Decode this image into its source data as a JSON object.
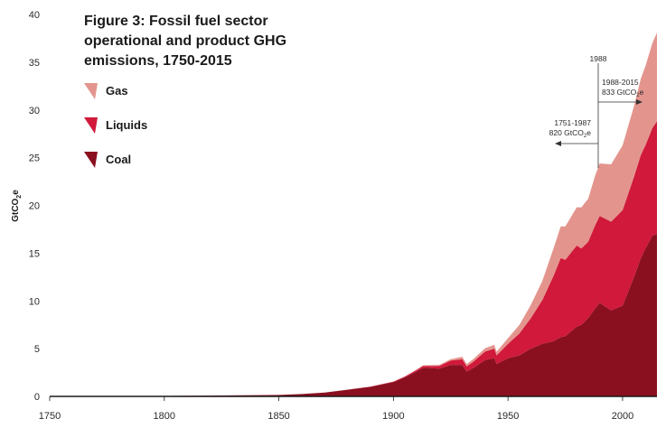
{
  "chart_data": {
    "type": "area",
    "stacked": true,
    "title_lines": [
      "Figure 3: Fossil fuel sector",
      "operational and product GHG",
      "emissions, 1750-2015"
    ],
    "ylabel_main": "GtCO",
    "ylabel_sub": "2",
    "ylabel_tail": "e",
    "xlabel": "",
    "xlim": [
      1750,
      2015
    ],
    "ylim": [
      0,
      40
    ],
    "xticks": [
      1750,
      1800,
      1850,
      1900,
      1950,
      2000
    ],
    "yticks": [
      0,
      5,
      10,
      15,
      20,
      25,
      30,
      35,
      40
    ],
    "grid": false,
    "legend_position": "top-left",
    "x": [
      1750,
      1800,
      1850,
      1860,
      1870,
      1880,
      1890,
      1900,
      1905,
      1910,
      1913,
      1920,
      1925,
      1930,
      1932,
      1935,
      1940,
      1944,
      1945,
      1950,
      1955,
      1960,
      1965,
      1970,
      1973,
      1975,
      1980,
      1982,
      1985,
      1988,
      1990,
      1995,
      2000,
      2005,
      2008,
      2010,
      2013,
      2015
    ],
    "series": [
      {
        "name": "Coal",
        "color": "#8a1020",
        "values": [
          0.02,
          0.05,
          0.15,
          0.25,
          0.4,
          0.7,
          1.0,
          1.5,
          2.0,
          2.6,
          3.0,
          2.9,
          3.3,
          3.3,
          2.6,
          3.0,
          3.8,
          4.0,
          3.4,
          4.0,
          4.3,
          5.0,
          5.5,
          5.8,
          6.2,
          6.3,
          7.3,
          7.5,
          8.2,
          9.2,
          9.8,
          9.0,
          9.5,
          12.5,
          14.5,
          15.5,
          16.8,
          17.0
        ]
      },
      {
        "name": "Liquids",
        "color": "#d0193b",
        "values": [
          0,
          0,
          0,
          0,
          0,
          0.01,
          0.03,
          0.05,
          0.08,
          0.15,
          0.2,
          0.3,
          0.45,
          0.6,
          0.55,
          0.65,
          0.9,
          1.0,
          0.9,
          1.5,
          2.3,
          3.2,
          4.6,
          6.9,
          8.3,
          8.0,
          8.5,
          8.0,
          8.0,
          8.7,
          9.1,
          9.3,
          10.0,
          10.5,
          10.8,
          10.8,
          11.3,
          11.8
        ]
      },
      {
        "name": "Gas",
        "color": "#e3958d",
        "values": [
          0,
          0,
          0,
          0,
          0,
          0,
          0,
          0.01,
          0.02,
          0.04,
          0.06,
          0.1,
          0.15,
          0.25,
          0.24,
          0.28,
          0.35,
          0.4,
          0.38,
          0.6,
          0.9,
          1.4,
          2.0,
          2.9,
          3.3,
          3.5,
          4.0,
          4.3,
          4.5,
          5.2,
          5.5,
          6.0,
          6.8,
          7.4,
          8.0,
          8.3,
          8.9,
          9.3
        ]
      }
    ],
    "annotations": [
      {
        "label": "1988",
        "x": 1988
      },
      {
        "label_line1": "1988-2015",
        "label_line2_main": "833 GtCO",
        "label_line2_sub": "2",
        "label_line2_tail": "e",
        "direction": "right"
      },
      {
        "label_line1": "1751-1987",
        "label_line2_main": "820 GtCO",
        "label_line2_sub": "2",
        "label_line2_tail": "e",
        "direction": "left"
      }
    ]
  }
}
